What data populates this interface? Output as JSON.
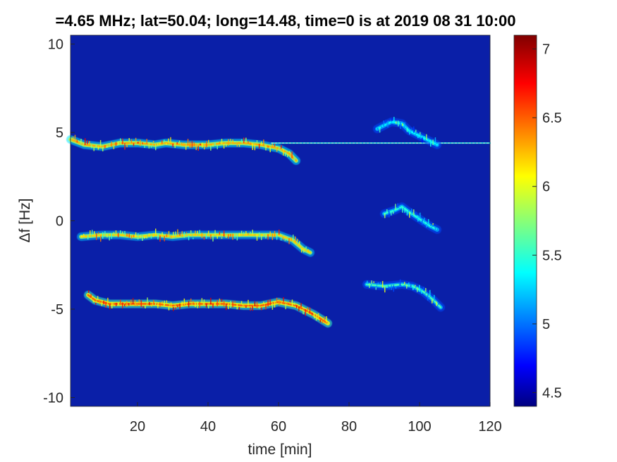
{
  "chart_data": {
    "type": "heatmap",
    "title": "=4.65 MHz;  lat=50.04; long=14.48, time=0 is at 2019 08 31 10:00",
    "xlabel": "time [min]",
    "ylabel": "Δf [Hz]",
    "xlim": [
      1,
      120
    ],
    "ylim": [
      -10.5,
      10.5
    ],
    "xticks": [
      "20",
      "40",
      "60",
      "80",
      "100",
      "120"
    ],
    "xtick_values": [
      20,
      40,
      60,
      80,
      100,
      120
    ],
    "yticks": [
      "10",
      "5",
      "0",
      "-5",
      "-10"
    ],
    "ytick_values": [
      10,
      5,
      0,
      -5,
      -10
    ],
    "colorbar": {
      "min": 4.4,
      "max": 7.1,
      "ticks": [
        "7",
        "6.5",
        "6",
        "5.5",
        "5",
        "4.5"
      ],
      "tick_values": [
        7,
        6.5,
        6,
        5.5,
        5,
        4.5
      ],
      "colormap": "jet"
    },
    "background_color": "#0a1fa8",
    "traces": [
      {
        "name": "upper trace",
        "points": [
          [
            1,
            4.6
          ],
          [
            5,
            4.3
          ],
          [
            10,
            4.2
          ],
          [
            15,
            4.4
          ],
          [
            20,
            4.4
          ],
          [
            25,
            4.3
          ],
          [
            28,
            4.4
          ],
          [
            33,
            4.3
          ],
          [
            40,
            4.3
          ],
          [
            45,
            4.4
          ],
          [
            50,
            4.4
          ],
          [
            55,
            4.3
          ],
          [
            60,
            4.1
          ],
          [
            63,
            3.8
          ],
          [
            65,
            3.4
          ]
        ],
        "intensity": 6.3
      },
      {
        "name": "carrier line",
        "points": [
          [
            58,
            4.4
          ],
          [
            120,
            4.4
          ]
        ],
        "intensity": 5.8
      },
      {
        "name": "middle trace",
        "points": [
          [
            4,
            -0.9
          ],
          [
            10,
            -0.8
          ],
          [
            15,
            -0.8
          ],
          [
            20,
            -0.9
          ],
          [
            25,
            -0.8
          ],
          [
            30,
            -0.9
          ],
          [
            35,
            -0.8
          ],
          [
            40,
            -0.8
          ],
          [
            45,
            -0.8
          ],
          [
            50,
            -0.8
          ],
          [
            55,
            -0.8
          ],
          [
            60,
            -0.8
          ],
          [
            64,
            -1.1
          ],
          [
            67,
            -1.6
          ],
          [
            69,
            -1.8
          ]
        ],
        "intensity": 6.2
      },
      {
        "name": "lower trace",
        "points": [
          [
            6,
            -4.2
          ],
          [
            8,
            -4.5
          ],
          [
            12,
            -4.7
          ],
          [
            18,
            -4.7
          ],
          [
            25,
            -4.7
          ],
          [
            30,
            -4.8
          ],
          [
            35,
            -4.7
          ],
          [
            40,
            -4.7
          ],
          [
            45,
            -4.7
          ],
          [
            50,
            -4.8
          ],
          [
            55,
            -4.8
          ],
          [
            60,
            -4.6
          ],
          [
            65,
            -4.8
          ],
          [
            70,
            -5.3
          ],
          [
            74,
            -5.8
          ]
        ],
        "intensity": 6.5
      },
      {
        "name": "upper echo",
        "points": [
          [
            88,
            5.2
          ],
          [
            92,
            5.6
          ],
          [
            95,
            5.5
          ],
          [
            97,
            5.1
          ],
          [
            100,
            4.8
          ],
          [
            103,
            4.5
          ],
          [
            105,
            4.3
          ]
        ],
        "intensity": 5.4
      },
      {
        "name": "middle echo",
        "points": [
          [
            90,
            0.4
          ],
          [
            93,
            0.6
          ],
          [
            95,
            0.8
          ],
          [
            97,
            0.5
          ],
          [
            100,
            0.1
          ],
          [
            103,
            -0.3
          ],
          [
            105,
            -0.5
          ]
        ],
        "intensity": 5.5
      },
      {
        "name": "lower echo",
        "points": [
          [
            85,
            -3.6
          ],
          [
            90,
            -3.7
          ],
          [
            95,
            -3.6
          ],
          [
            98,
            -3.7
          ],
          [
            101,
            -4.0
          ],
          [
            104,
            -4.5
          ],
          [
            106,
            -4.9
          ]
        ],
        "intensity": 5.6
      }
    ]
  }
}
